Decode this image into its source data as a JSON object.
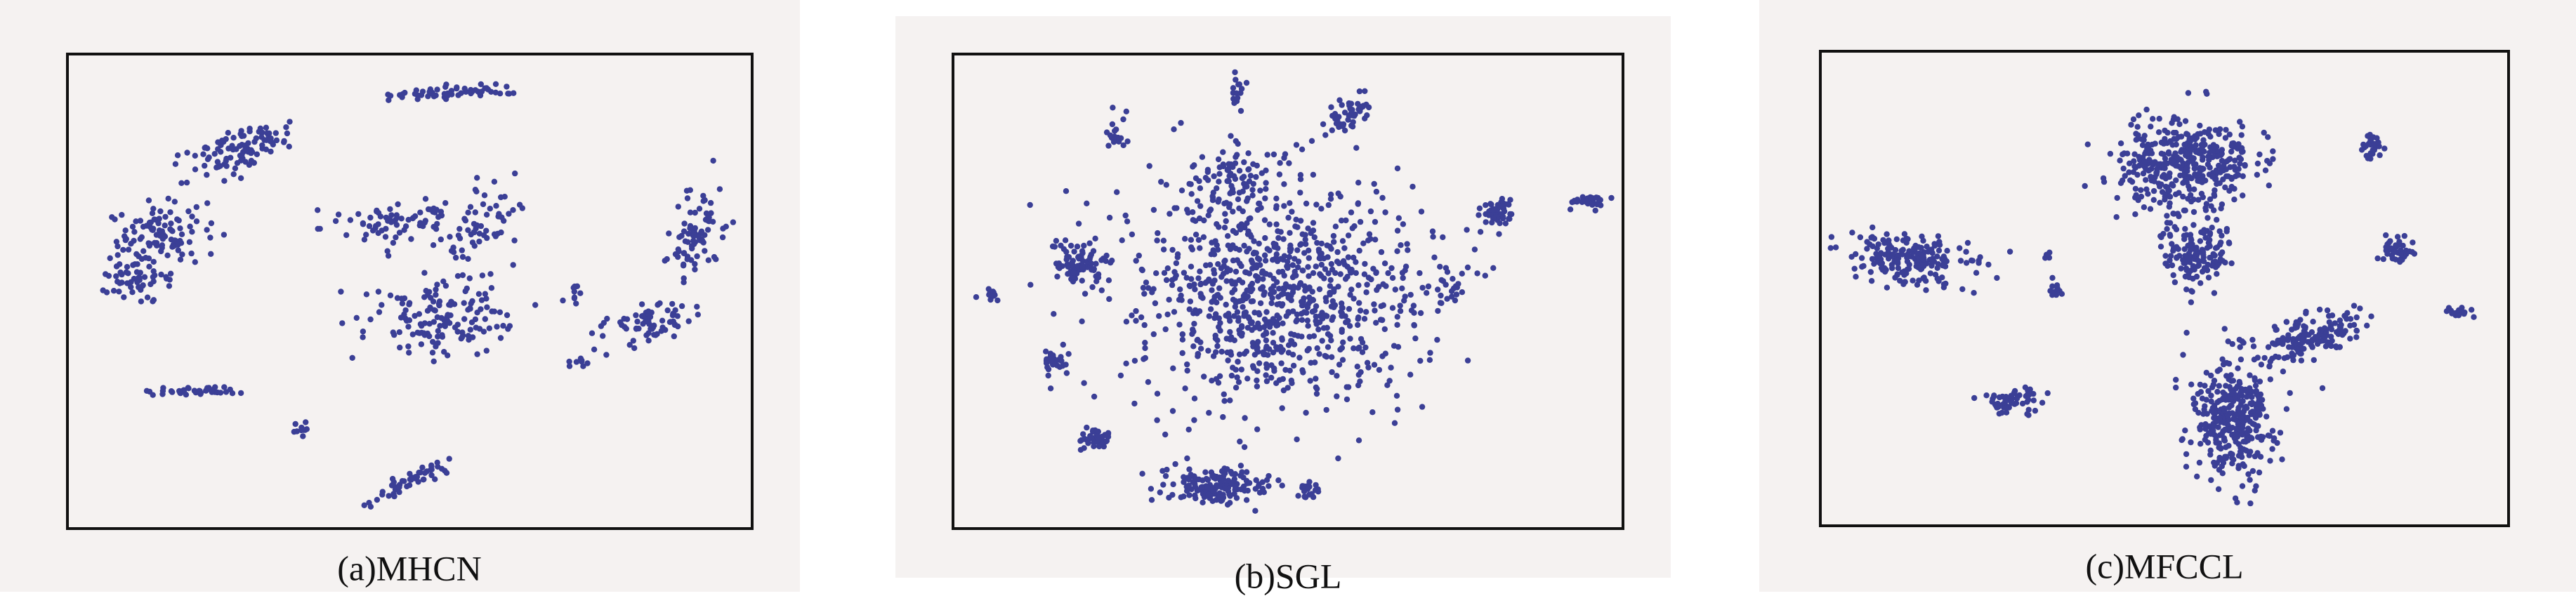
{
  "panels": [
    {
      "caption": "(a)MHCN"
    },
    {
      "caption": "(b)SGL"
    },
    {
      "caption": "(c)MFCCL"
    }
  ]
}
